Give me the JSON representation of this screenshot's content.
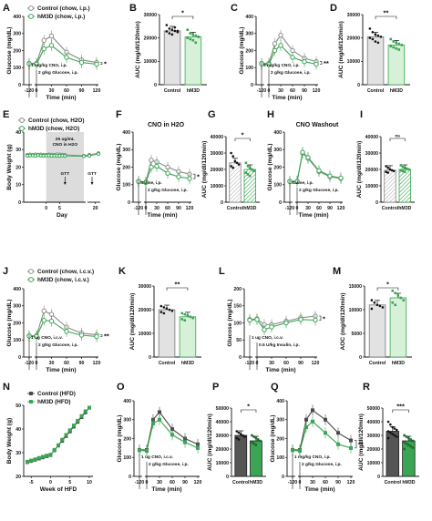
{
  "colors": {
    "control": "#8c8c8c",
    "hm3d": "#3aa552",
    "control_hfd": "#4a4a4a",
    "hm3d_hfd": "#3aa552",
    "bar_control": "#e2e2e2",
    "bar_hm3d": "#d7f0d8"
  },
  "panels": [
    {
      "id": "A",
      "kind": "line",
      "x": [
        -120,
        0,
        15,
        30,
        60,
        90,
        120
      ],
      "xticks": [
        -120,
        0,
        30,
        60,
        90,
        120
      ],
      "ylim": [
        0,
        400
      ],
      "yticks": [
        0,
        100,
        200,
        300,
        400
      ],
      "ylabel": "Glucose (mg/dL)",
      "xlabel": "Time (min)",
      "legend": [
        "Control (chow, i.p.)",
        "hM3D (chow, i.p.)"
      ],
      "annotations": [
        "1 mg/kg CNO, i.p.",
        "2 g/kg Glucose, i.p."
      ],
      "sig": "*",
      "series": [
        {
          "group": "control",
          "values": [
            125,
            125,
            260,
            285,
            190,
            145,
            130
          ]
        },
        {
          "group": "hm3d",
          "values": [
            122,
            120,
            210,
            230,
            160,
            130,
            120
          ]
        }
      ]
    },
    {
      "id": "B",
      "kind": "bar",
      "categories": [
        "Control",
        "hM3D"
      ],
      "values": [
        23000,
        20500
      ],
      "ylim": [
        0,
        30000
      ],
      "yticks": [
        0,
        10000,
        20000,
        30000
      ],
      "ylabel": "AUC (mg/dl/120min)",
      "sig": "*",
      "points": [
        [
          25500,
          24000,
          23500,
          23000,
          22500,
          22800,
          22000,
          21500,
          24500,
          23000
        ],
        [
          23500,
          22000,
          21500,
          21000,
          20500,
          20000,
          19500,
          19000,
          18000,
          20500
        ]
      ]
    },
    {
      "id": "C",
      "kind": "line",
      "x": [
        -120,
        0,
        15,
        30,
        60,
        90,
        120
      ],
      "xticks": [
        -120,
        0,
        30,
        60,
        90,
        120
      ],
      "ylim": [
        0,
        400
      ],
      "yticks": [
        0,
        100,
        200,
        300,
        400
      ],
      "ylabel": "Glucose (mg/dL)",
      "xlabel": "Time (min)",
      "annotations": [
        "5 mg/kg CNO, i.p.",
        "2 g/kg Glucose, i.p."
      ],
      "sig": "**",
      "series": [
        {
          "group": "control",
          "values": [
            125,
            125,
            240,
            290,
            200,
            155,
            135
          ]
        },
        {
          "group": "hm3d",
          "values": [
            122,
            118,
            200,
            230,
            160,
            135,
            120
          ]
        }
      ]
    },
    {
      "id": "D",
      "kind": "bar",
      "categories": [
        "Control",
        "hM3D"
      ],
      "values": [
        20500,
        17000
      ],
      "ylim": [
        0,
        30000
      ],
      "yticks": [
        0,
        10000,
        20000,
        30000
      ],
      "ylabel": "AUC (mg/dl/120min)",
      "sig": "**",
      "points": [
        [
          24000,
          22500,
          21500,
          21000,
          20500,
          20000,
          19500,
          18500,
          18000
        ],
        [
          19500,
          18500,
          18000,
          17500,
          17000,
          16500,
          16000,
          15500,
          15000
        ]
      ]
    },
    {
      "id": "E",
      "kind": "bw",
      "x": [
        -7,
        -6,
        -5,
        -4,
        -3,
        -2,
        -1,
        0,
        1,
        2,
        3,
        4,
        5,
        6,
        7,
        14,
        18,
        21
      ],
      "xticks": [
        0,
        5,
        20
      ],
      "ylim": [
        0,
        40
      ],
      "yticks": [
        0,
        10,
        20,
        30,
        40
      ],
      "ylabel": "Body Weight (g)",
      "xlabel": "Day",
      "legend": [
        "Control (chow, H2O)",
        "hM3D (chow, H2O)"
      ],
      "shade_label": [
        "25 ug/mL",
        "CNO in H2O"
      ],
      "shade": [
        0,
        14
      ],
      "arrows": [
        "GTT",
        "GTT"
      ],
      "series": [
        {
          "group": "control",
          "values": [
            27,
            27.2,
            27,
            27.3,
            27.1,
            27.2,
            27,
            27,
            27.2,
            27.1,
            27,
            27.3,
            27.2,
            27.1,
            27,
            26.5,
            27,
            28
          ]
        },
        {
          "group": "hm3d",
          "values": [
            26.5,
            26.6,
            26.7,
            26.5,
            26.8,
            26.6,
            26.5,
            26.6,
            26.7,
            26.5,
            26.6,
            26.4,
            26.5,
            26.6,
            26.4,
            26.2,
            26.5,
            27.5
          ]
        }
      ]
    },
    {
      "id": "F",
      "kind": "line",
      "title": "CNO in H2O",
      "x": [
        -120,
        0,
        15,
        30,
        60,
        90,
        120
      ],
      "xticks": [
        -120,
        0,
        30,
        60,
        90,
        120
      ],
      "ylim": [
        0,
        400
      ],
      "yticks": [
        0,
        100,
        200,
        300,
        400
      ],
      "ylabel": "Glucose (mg/dL)",
      "xlabel": "Time (min)",
      "annotations": [
        "Saline, i.p.",
        "2 g/kg Glucose, i.p."
      ],
      "sig": "*",
      "series": [
        {
          "group": "control",
          "values": [
            120,
            115,
            240,
            230,
            200,
            175,
            160
          ]
        },
        {
          "group": "hm3d",
          "values": [
            118,
            112,
            200,
            205,
            165,
            145,
            135
          ]
        }
      ]
    },
    {
      "id": "G",
      "kind": "bar",
      "categories": [
        "Control",
        "hM3D"
      ],
      "values": [
        24000,
        20000
      ],
      "ylim": [
        0,
        40000
      ],
      "yticks": [
        0,
        10000,
        20000,
        30000,
        40000
      ],
      "ylabel": "AUC (mg/dl/120min)",
      "sig": "*",
      "hatched": true,
      "points": [
        [
          30000,
          28000,
          25000,
          24000,
          23000,
          22000,
          21000
        ],
        [
          24000,
          22000,
          21000,
          20000,
          19000,
          18000,
          17000,
          16000
        ]
      ]
    },
    {
      "id": "H",
      "kind": "line",
      "title": "CNO Washout",
      "x": [
        -120,
        0,
        15,
        30,
        60,
        90,
        120
      ],
      "xticks": [
        -120,
        0,
        30,
        60,
        90,
        120
      ],
      "ylim": [
        0,
        400
      ],
      "yticks": [
        0,
        100,
        200,
        300,
        400
      ],
      "ylabel": "Glucose (mg/dL)",
      "xlabel": "Time (min)",
      "annotations": [
        "Saline, i.p.",
        "2 g/kg Glucose, i.p."
      ],
      "series": [
        {
          "group": "control",
          "values": [
            120,
            120,
            280,
            250,
            175,
            145,
            135
          ]
        },
        {
          "group": "hm3d",
          "values": [
            118,
            118,
            285,
            255,
            180,
            150,
            138
          ]
        }
      ]
    },
    {
      "id": "I",
      "kind": "bar",
      "categories": [
        "Control",
        "hM3D"
      ],
      "values": [
        19500,
        20000
      ],
      "ylim": [
        0,
        40000
      ],
      "yticks": [
        0,
        10000,
        20000,
        30000,
        40000
      ],
      "ylabel": "AUC (mg/dl/120min)",
      "sig": "ns",
      "hatched": true,
      "points": [
        [
          22000,
          21000,
          20000,
          19500,
          19000,
          18500,
          18000
        ],
        [
          22500,
          21500,
          21000,
          20500,
          20000,
          19500,
          19000,
          18500
        ]
      ]
    },
    {
      "id": "J",
      "kind": "line",
      "x": [
        -120,
        0,
        15,
        30,
        60,
        90,
        120
      ],
      "xticks": [
        -120,
        0,
        30,
        60,
        90,
        120
      ],
      "ylim": [
        0,
        400
      ],
      "yticks": [
        0,
        100,
        200,
        300,
        400
      ],
      "ylabel": "Glucose (mg/dL)",
      "xlabel": "Time (min)",
      "legend": [
        "Control (chow, i.c.v.)",
        "hM3D (chow, i.c.v.)"
      ],
      "annotations": [
        "1 ug CNO, i.c.v.",
        "2 g/kg Glucose, i.p."
      ],
      "sig": "**",
      "series": [
        {
          "group": "control",
          "values": [
            125,
            125,
            270,
            250,
            175,
            140,
            130
          ]
        },
        {
          "group": "hm3d",
          "values": [
            122,
            120,
            215,
            210,
            150,
            128,
            120
          ]
        }
      ]
    },
    {
      "id": "K",
      "kind": "bar",
      "categories": [
        "Control",
        "hM3D"
      ],
      "values": [
        20000,
        17000
      ],
      "ylim": [
        0,
        30000
      ],
      "yticks": [
        0,
        10000,
        20000,
        30000
      ],
      "ylabel": "AUC (mg/dl/120min)",
      "sig": "**",
      "points": [
        [
          21500,
          21000,
          20500,
          20000,
          19500,
          19000,
          18500
        ],
        [
          18500,
          18000,
          17500,
          17000,
          16500,
          16000,
          15500
        ]
      ]
    },
    {
      "id": "L",
      "kind": "line",
      "x": [
        -120,
        0,
        15,
        30,
        60,
        90,
        120
      ],
      "xticks": [
        -120,
        0,
        30,
        60,
        90,
        120
      ],
      "ylim": [
        0,
        200
      ],
      "yticks": [
        0,
        50,
        100,
        150,
        200
      ],
      "ylabel": "Glucose (mg/dL)",
      "xlabel": "Time (min)",
      "annotations": [
        "1 ug CNO, i.c.v.",
        "0.5 U/kg Insulin, i.p."
      ],
      "sig": "*",
      "series": [
        {
          "group": "control",
          "values": [
            110,
            112,
            95,
            95,
            105,
            115,
            120
          ]
        },
        {
          "group": "hm3d",
          "values": [
            108,
            110,
            80,
            88,
            100,
            110,
            108
          ]
        }
      ]
    },
    {
      "id": "M",
      "kind": "bar",
      "categories": [
        "Control",
        "hM3D"
      ],
      "values": [
        11000,
        12500
      ],
      "ylim": [
        0,
        15000
      ],
      "yticks": [
        0,
        5000,
        10000,
        15000
      ],
      "ylabel": "AOC (mg/dl/120min)",
      "sig": "*",
      "points": [
        [
          12000,
          11500,
          11000,
          10800,
          10500,
          10200
        ],
        [
          14000,
          13500,
          13000,
          12500,
          12000,
          11500,
          11000
        ]
      ]
    },
    {
      "id": "N",
      "kind": "hfd",
      "x": [
        -6,
        -5,
        -4,
        -3,
        -2,
        -1,
        0,
        1,
        2,
        3,
        4,
        5,
        6,
        7,
        8,
        9,
        10
      ],
      "xticks": [
        -5,
        0,
        5,
        10
      ],
      "ylim": [
        20,
        50
      ],
      "yticks": [
        20,
        30,
        40,
        50
      ],
      "ylabel": "Body Weight (g)",
      "xlabel": "Week of HFD",
      "legend": [
        "Control (HFD)",
        "hM3D (HFD)"
      ],
      "series": [
        {
          "group": "control_hfd",
          "values": [
            26,
            26.5,
            27,
            27.5,
            28,
            28.5,
            29,
            31,
            33,
            35,
            37,
            39,
            41,
            43,
            45,
            47,
            49
          ]
        },
        {
          "group": "hm3d_hfd",
          "values": [
            26.2,
            26.7,
            27.2,
            27.8,
            28.3,
            28.8,
            29.2,
            31.2,
            33.2,
            35.5,
            37.5,
            39.5,
            41.5,
            43.5,
            45.5,
            47.5,
            49
          ]
        }
      ]
    },
    {
      "id": "O",
      "kind": "line",
      "x": [
        -120,
        0,
        15,
        30,
        60,
        90,
        120
      ],
      "xticks": [
        -120,
        0,
        30,
        60,
        90,
        120
      ],
      "ylim": [
        0,
        400
      ],
      "yticks": [
        0,
        100,
        200,
        300,
        400
      ],
      "ylabel": "Glucose (mg/dL)",
      "xlabel": "Time (min)",
      "annotations": [
        "1 ug CNO, i.c.v.",
        "2 g/kg Glucose, i.p."
      ],
      "series": [
        {
          "group": "control_hfd",
          "values": [
            140,
            140,
            300,
            340,
            250,
            200,
            170
          ]
        },
        {
          "group": "hm3d_hfd",
          "values": [
            138,
            135,
            280,
            300,
            220,
            180,
            150
          ]
        }
      ]
    },
    {
      "id": "P",
      "kind": "bar",
      "categories": [
        "Control",
        "hM3D"
      ],
      "values": [
        30000,
        26000
      ],
      "ylim": [
        0,
        50000
      ],
      "yticks": [
        0,
        10000,
        20000,
        30000,
        40000,
        50000
      ],
      "ylabel": "AUC (mg/dl/120min)",
      "sig": "*",
      "dark": true,
      "points": [
        [
          33000,
          32000,
          31000,
          30000,
          29000,
          28000,
          27000
        ],
        [
          30000,
          29000,
          28000,
          27000,
          26000,
          25000,
          24000,
          23000
        ]
      ]
    },
    {
      "id": "Q",
      "kind": "line",
      "x": [
        -120,
        0,
        15,
        30,
        60,
        90,
        120
      ],
      "xticks": [
        -120,
        0,
        30,
        60,
        90,
        120
      ],
      "ylim": [
        0,
        400
      ],
      "yticks": [
        0,
        100,
        200,
        300,
        400
      ],
      "ylabel": "Glucose (mg/dL)",
      "xlabel": "Time (min)",
      "annotations": [
        "1 mg/kg CNO, i.p.",
        "2 g/kg Glucose, i.p."
      ],
      "sig": "**",
      "series": [
        {
          "group": "control_hfd",
          "values": [
            140,
            140,
            300,
            350,
            300,
            230,
            190
          ]
        },
        {
          "group": "hm3d_hfd",
          "values": [
            138,
            135,
            260,
            290,
            230,
            170,
            150
          ]
        }
      ]
    },
    {
      "id": "R",
      "kind": "bar",
      "categories": [
        "Control",
        "hM3D"
      ],
      "values": [
        33000,
        26000
      ],
      "ylim": [
        0,
        50000
      ],
      "yticks": [
        0,
        10000,
        20000,
        30000,
        40000,
        50000
      ],
      "ylabel": "AUC (mg/dl/120min)",
      "sig": "***",
      "dark": true,
      "points": [
        [
          40000,
          38000,
          36000,
          35000,
          34000,
          33000,
          32000,
          31000,
          30000,
          29000,
          28000
        ],
        [
          30000,
          29000,
          28000,
          27000,
          26000,
          25000,
          24000,
          23000,
          22000,
          21000,
          20000
        ]
      ]
    }
  ]
}
